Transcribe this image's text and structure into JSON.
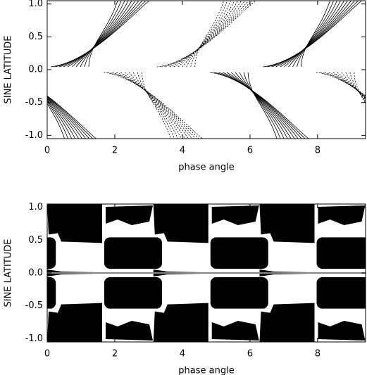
{
  "chart_data": [
    {
      "type": "contour",
      "xlabel": "phase angle",
      "ylabel": "SINE LATITUDE",
      "xlim": [
        0,
        9.42
      ],
      "ylim": [
        -1.05,
        1.05
      ],
      "xticks": [
        0,
        2,
        4,
        6,
        8
      ],
      "yticks": [
        {
          "value": -1,
          "label": "-1.0"
        },
        {
          "value": -0.5,
          "label": "-0.5"
        },
        {
          "value": 0,
          "label": "0.0"
        },
        {
          "value": 0.5,
          "label": "0.5"
        },
        {
          "value": 1,
          "label": "1.0"
        }
      ]
    },
    {
      "type": "map",
      "xlabel": "phase angle",
      "ylabel": "SINE LATITUDE",
      "xlim": [
        0,
        9.42
      ],
      "ylim": [
        -1.05,
        1.05
      ],
      "xticks": [
        0,
        2,
        4,
        6,
        8
      ],
      "yticks": [
        {
          "value": -1,
          "label": "-1.0"
        },
        {
          "value": -0.5,
          "label": "-0.5"
        },
        {
          "value": 0,
          "label": "0.0"
        },
        {
          "value": 0.5,
          "label": "0.5"
        },
        {
          "value": 1,
          "label": "1.0"
        }
      ]
    }
  ]
}
